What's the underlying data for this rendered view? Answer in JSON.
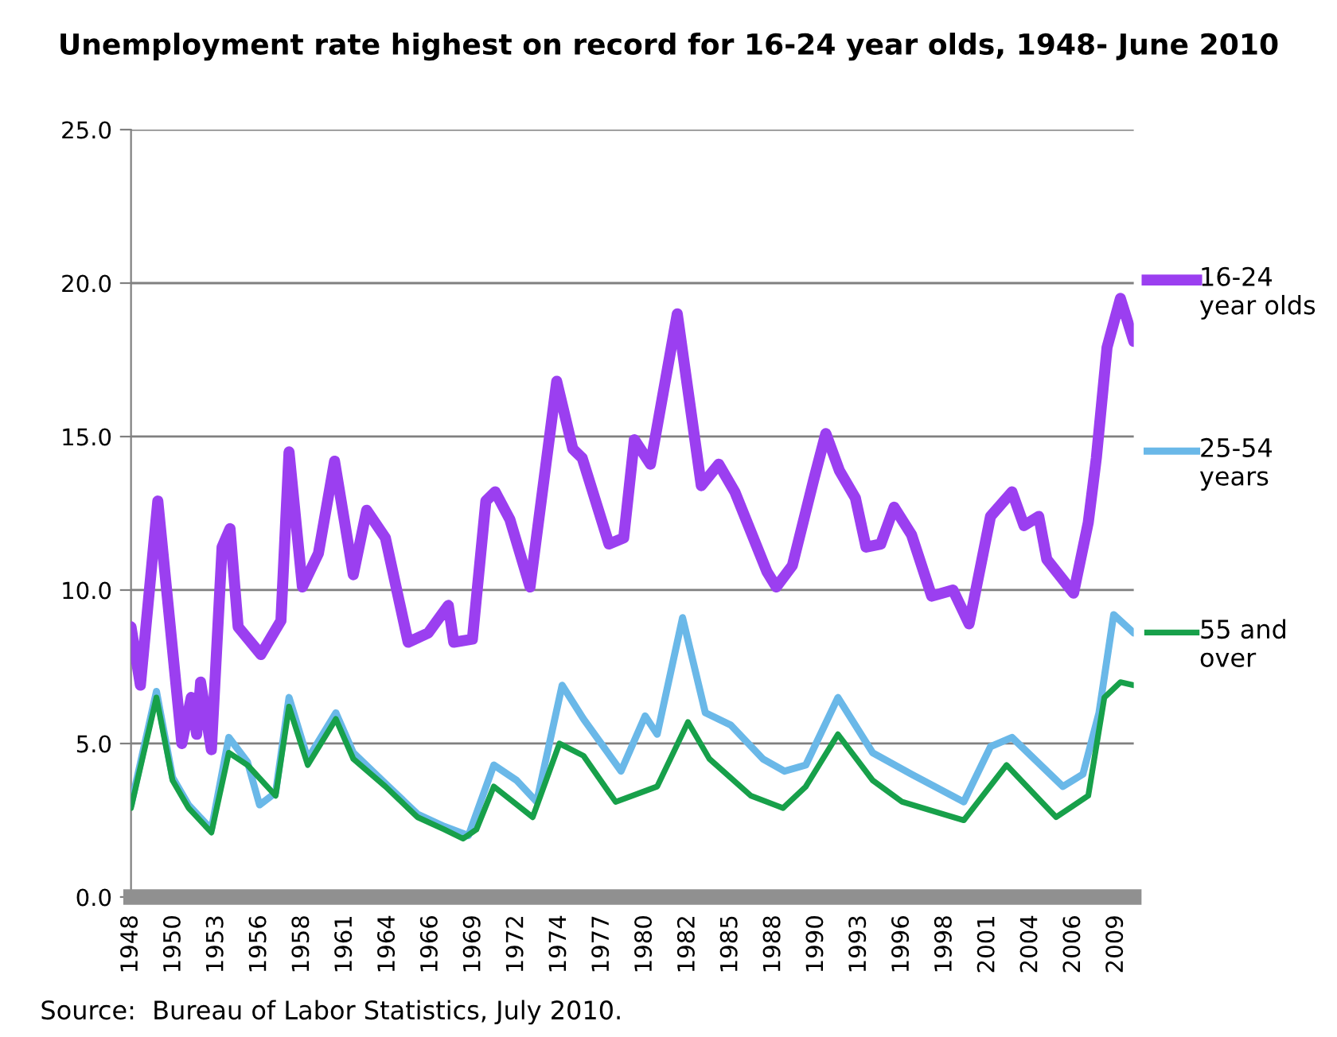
{
  "chart_data": {
    "type": "line",
    "title": "Unemployment rate highest on record for 16-24 year olds, 1948- June 2010",
    "xlim": [
      "1948-01",
      "2010-06"
    ],
    "xticks": [
      {
        "value": "1948-01",
        "label": "1948"
      },
      {
        "value": "1950-09",
        "label": "1950"
      },
      {
        "value": "1953-05",
        "label": "1953"
      },
      {
        "value": "1956-01",
        "label": "1956"
      },
      {
        "value": "1958-09",
        "label": "1958"
      },
      {
        "value": "1961-05",
        "label": "1961"
      },
      {
        "value": "1964-01",
        "label": "1964"
      },
      {
        "value": "1966-09",
        "label": "1966"
      },
      {
        "value": "1969-05",
        "label": "1969"
      },
      {
        "value": "1972-01",
        "label": "1972"
      },
      {
        "value": "1974-09",
        "label": "1974"
      },
      {
        "value": "1977-05",
        "label": "1977"
      },
      {
        "value": "1980-01",
        "label": "1980"
      },
      {
        "value": "1982-09",
        "label": "1982"
      },
      {
        "value": "1985-05",
        "label": "1985"
      },
      {
        "value": "1988-01",
        "label": "1988"
      },
      {
        "value": "1990-09",
        "label": "1990"
      },
      {
        "value": "1993-05",
        "label": "1993"
      },
      {
        "value": "1996-01",
        "label": "1996"
      },
      {
        "value": "1998-09",
        "label": "1998"
      },
      {
        "value": "2001-05",
        "label": "2001"
      },
      {
        "value": "2004-01",
        "label": "2004"
      },
      {
        "value": "2006-09",
        "label": "2006"
      },
      {
        "value": "2009-05",
        "label": "2009"
      }
    ],
    "ylim": [
      0,
      25
    ],
    "yticks": [
      {
        "value": 0,
        "label": "0.0"
      },
      {
        "value": 5,
        "label": "5.0"
      },
      {
        "value": 10,
        "label": "10.0"
      },
      {
        "value": 15,
        "label": "15.0"
      },
      {
        "value": 20,
        "label": "20.0"
      },
      {
        "value": 25,
        "label": "25.0"
      }
    ],
    "grid": "y",
    "legend": "right",
    "marker": "none",
    "line_style": "solid",
    "series": [
      {
        "name": "16-24 year olds",
        "color": "#9b3ff0",
        "x": [
          "1948-01",
          "1948-08",
          "1949-09",
          "1951-03",
          "1951-10",
          "1952-02",
          "1952-05",
          "1953-01",
          "1953-09",
          "1954-03",
          "1954-09",
          "1956-02",
          "1957-05",
          "1957-11",
          "1958-09",
          "1959-09",
          "1960-09",
          "1961-11",
          "1962-09",
          "1963-11",
          "1965-04",
          "1966-07",
          "1967-10",
          "1968-02",
          "1969-04",
          "1970-02",
          "1970-09",
          "1971-08",
          "1972-11",
          "1974-07",
          "1975-07",
          "1976-02",
          "1977-10",
          "1978-09",
          "1979-05",
          "1980-05",
          "1982-01",
          "1983-07",
          "1984-08",
          "1985-08",
          "1987-08",
          "1988-03",
          "1989-03",
          "1990-07",
          "1991-04",
          "1992-02",
          "1993-02",
          "1993-10",
          "1994-09",
          "1995-07",
          "1996-08",
          "1997-11",
          "1999-03",
          "2000-03",
          "2001-07",
          "2002-11",
          "2003-08",
          "2004-07",
          "2005-01",
          "2006-09",
          "2007-08",
          "2008-02",
          "2008-10",
          "2009-08",
          "2010-06"
        ],
        "values": [
          8.8,
          6.9,
          12.9,
          5.0,
          6.5,
          5.3,
          7.0,
          4.8,
          11.4,
          12.0,
          8.8,
          7.9,
          9.0,
          14.5,
          10.1,
          11.2,
          14.2,
          10.5,
          12.6,
          11.7,
          8.3,
          8.6,
          9.5,
          8.3,
          8.4,
          12.9,
          13.2,
          12.3,
          10.1,
          16.8,
          14.6,
          14.3,
          11.5,
          11.7,
          14.9,
          14.1,
          19.0,
          13.4,
          14.1,
          13.2,
          10.6,
          10.1,
          10.8,
          13.6,
          15.1,
          13.9,
          13.0,
          11.4,
          11.5,
          12.7,
          11.8,
          9.8,
          10.0,
          8.9,
          12.4,
          13.2,
          12.1,
          12.4,
          11.0,
          9.9,
          12.2,
          14.3,
          17.9,
          19.5,
          18.1
        ]
      },
      {
        "name": "25-54 years",
        "color": "#6ab8e8",
        "x": [
          "1948-01",
          "1949-08",
          "1950-08",
          "1951-08",
          "1953-01",
          "1954-02",
          "1955-04",
          "1956-01",
          "1957-01",
          "1957-11",
          "1959-01",
          "1960-10",
          "1961-11",
          "1963-11",
          "1965-11",
          "1967-07",
          "1969-01",
          "1970-08",
          "1972-01",
          "1973-04",
          "1974-11",
          "1976-03",
          "1978-07",
          "1980-01",
          "1980-10",
          "1982-05",
          "1983-10",
          "1985-05",
          "1987-05",
          "1988-09",
          "1990-01",
          "1992-01",
          "1994-03",
          "1996-08",
          "1999-11",
          "2001-07",
          "2002-11",
          "2006-01",
          "2007-04",
          "2008-04",
          "2009-03",
          "2010-06"
        ],
        "values": [
          3.0,
          6.7,
          3.9,
          3.0,
          2.2,
          5.2,
          4.4,
          3.0,
          3.4,
          6.5,
          4.5,
          6.0,
          4.7,
          3.7,
          2.7,
          2.3,
          2.0,
          4.3,
          3.8,
          3.1,
          6.9,
          5.8,
          4.1,
          5.9,
          5.3,
          9.1,
          6.0,
          5.6,
          4.5,
          4.1,
          4.3,
          6.5,
          4.7,
          4.0,
          3.1,
          4.9,
          5.2,
          3.6,
          4.0,
          6.0,
          9.2,
          8.6
        ]
      },
      {
        "name": "55 and over",
        "color": "#17a04a",
        "x": [
          "1948-01",
          "1949-08",
          "1950-08",
          "1951-08",
          "1953-01",
          "1954-02",
          "1955-04",
          "1957-01",
          "1957-11",
          "1959-01",
          "1960-10",
          "1961-11",
          "1963-11",
          "1965-11",
          "1967-07",
          "1968-09",
          "1969-07",
          "1970-08",
          "1973-01",
          "1974-09",
          "1976-03",
          "1978-03",
          "1980-10",
          "1982-09",
          "1984-01",
          "1986-08",
          "1988-08",
          "1990-01",
          "1992-01",
          "1994-03",
          "1996-01",
          "1999-11",
          "2002-07",
          "2005-08",
          "2007-08",
          "2008-08",
          "2009-08",
          "2010-06"
        ],
        "values": [
          2.9,
          6.5,
          3.8,
          2.9,
          2.1,
          4.7,
          4.3,
          3.3,
          6.2,
          4.3,
          5.8,
          4.5,
          3.6,
          2.6,
          2.2,
          1.9,
          2.2,
          3.6,
          2.6,
          5.0,
          4.6,
          3.1,
          3.6,
          5.7,
          4.5,
          3.3,
          2.9,
          3.6,
          5.3,
          3.8,
          3.1,
          2.5,
          4.3,
          2.6,
          3.3,
          6.5,
          7.0,
          6.9
        ]
      }
    ],
    "annotations": [
      "Source:  Bureau of Labor Statistics, July 2010."
    ]
  }
}
